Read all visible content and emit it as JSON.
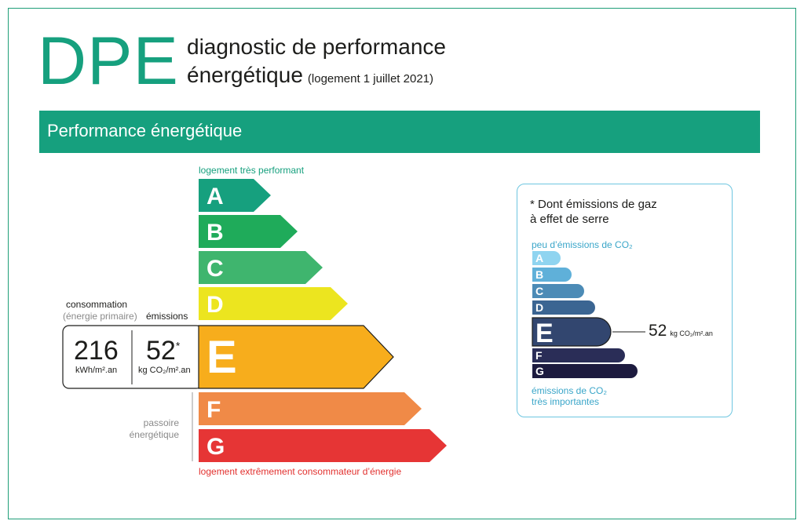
{
  "header": {
    "logo": "DPE",
    "title_line1": "diagnostic de performance",
    "title_line2": "énergétique",
    "title_note": "(logement 1 juillet 2021)"
  },
  "band": {
    "label": "Performance énergétique"
  },
  "energy_scale": {
    "top_caption": "logement très performant",
    "bottom_caption": "logement extrêmement consommateur d’énergie",
    "classes": [
      "A",
      "B",
      "C",
      "D",
      "E",
      "F",
      "G"
    ],
    "colors": [
      "#16a07e",
      "#1fab5a",
      "#3fb56e",
      "#ece51f",
      "#f7ad1c",
      "#f08a47",
      "#e63535"
    ],
    "current_class": "E",
    "passoire_line1": "passoire",
    "passoire_line2": "énergétique"
  },
  "consumption": {
    "label": "consommation",
    "sublabel": "(énergie primaire)",
    "value": "216",
    "unit": "kWh/m².an"
  },
  "emissions": {
    "label": "émissions",
    "value": "52",
    "star": "*",
    "unit": "kg CO₂/m².an"
  },
  "ghg_panel": {
    "title_line1": "* Dont émissions de gaz",
    "title_line2": "à effet de serre",
    "top_caption": "peu d’émissions de CO₂",
    "bottom_caption_line1": "émissions de CO₂",
    "bottom_caption_line2": "très importantes",
    "classes": [
      "A",
      "B",
      "C",
      "D",
      "E",
      "F",
      "G"
    ],
    "colors": [
      "#8fd4f0",
      "#5fb0d9",
      "#4c8bb6",
      "#3b6592",
      "#32466f",
      "#2a2d57",
      "#1d1b3f"
    ],
    "current_class": "E",
    "value": "52",
    "unit": "kg CO₂/m².an"
  }
}
